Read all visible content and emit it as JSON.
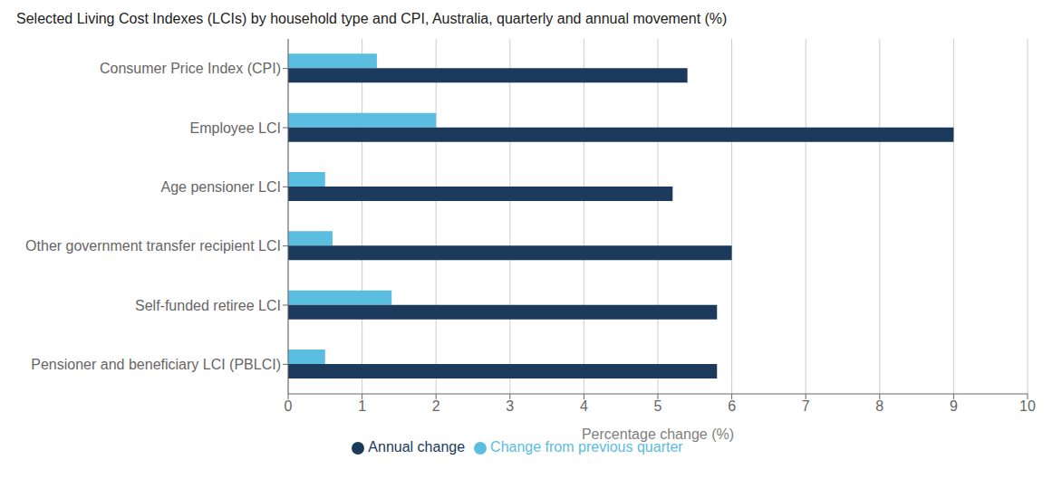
{
  "chart_data": {
    "type": "bar",
    "orientation": "horizontal",
    "title": "Selected Living Cost Indexes (LCIs) by household type and CPI, Australia, quarterly and annual movement (%)",
    "categories": [
      "Consumer Price Index (CPI)",
      "Employee LCI",
      "Age pensioner LCI",
      "Other government transfer recipient LCI",
      "Self-funded retiree LCI",
      "Pensioner and beneficiary LCI (PBLCI)"
    ],
    "series": [
      {
        "name": "Change from previous quarter",
        "color": "#5bbde0",
        "values": [
          1.2,
          2.0,
          0.5,
          0.6,
          1.4,
          0.5
        ]
      },
      {
        "name": "Annual change",
        "color": "#1b3a5c",
        "values": [
          5.4,
          9.0,
          5.2,
          6.0,
          5.8,
          5.8
        ]
      }
    ],
    "xlabel": "Percentage change (%)",
    "xlim": [
      0,
      10
    ],
    "xticks": [
      0,
      1,
      2,
      3,
      4,
      5,
      6,
      7,
      8,
      9,
      10
    ],
    "grid": true,
    "legend": "bottom"
  }
}
